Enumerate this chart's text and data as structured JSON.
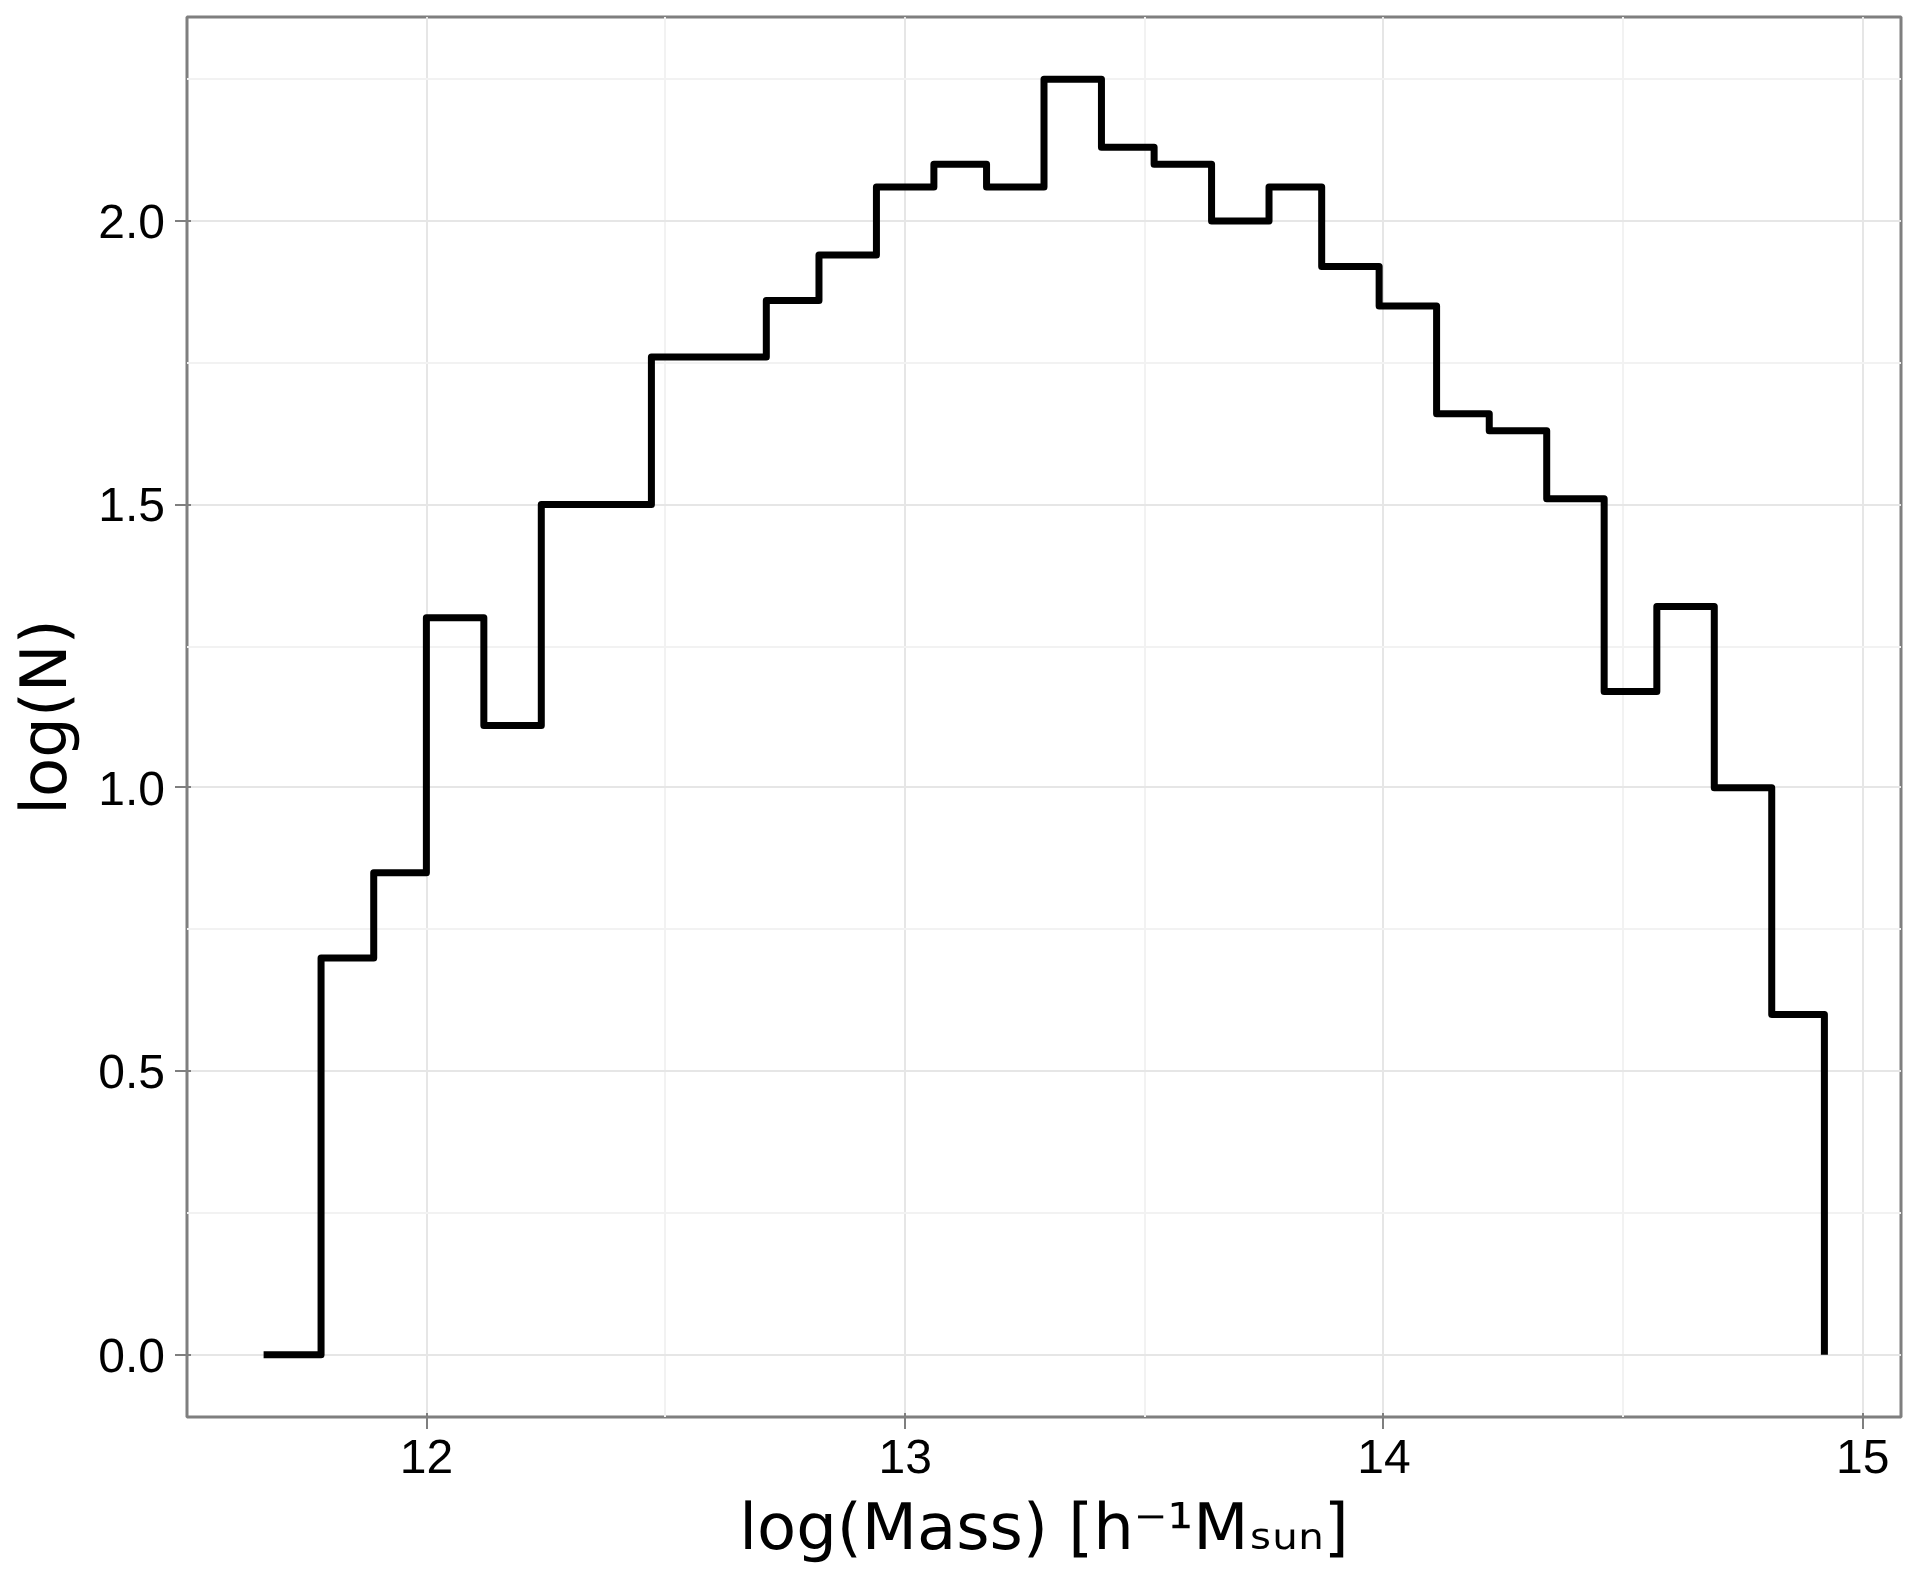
{
  "chart_data": {
    "type": "histogram",
    "xlabel": "log(Mass) [h⁻¹Mₛᵤₙ]",
    "ylabel": "log(N)",
    "bins": [
      11.66,
      11.78,
      11.89,
      12.0,
      12.12,
      12.24,
      12.36,
      12.47,
      12.59,
      12.71,
      12.82,
      12.94,
      13.06,
      13.17,
      13.29,
      13.41,
      13.52,
      13.64,
      13.76,
      13.87,
      13.99,
      14.11,
      14.22,
      14.34,
      14.46,
      14.57,
      14.69,
      14.81,
      14.92
    ],
    "values": [
      0,
      0.7,
      0.85,
      1.3,
      1.11,
      1.5,
      1.5,
      1.76,
      1.76,
      1.86,
      1.94,
      2.06,
      2.1,
      2.06,
      2.25,
      2.13,
      2.1,
      2.0,
      2.06,
      1.92,
      1.85,
      1.66,
      1.63,
      1.51,
      1.17,
      1.32,
      1.0,
      0.6
    ],
    "color": "#000000",
    "xlim": [
      11.5,
      15.08
    ],
    "ylim": [
      -0.11,
      2.36
    ],
    "xticks": [
      12,
      13,
      14,
      15
    ],
    "yticks": [
      {
        "value": 0,
        "label": "0.0"
      },
      {
        "value": 0.5,
        "label": "0.5"
      },
      {
        "value": 1,
        "label": "1.0"
      },
      {
        "value": 1.5,
        "label": "1.5"
      },
      {
        "value": 2,
        "label": "2.0"
      }
    ],
    "grid": true
  }
}
